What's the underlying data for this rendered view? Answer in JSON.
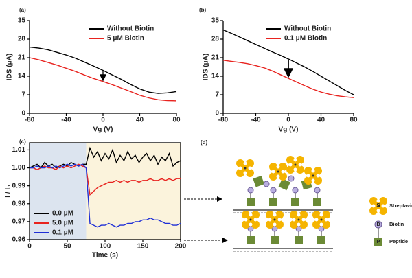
{
  "chart_data": [
    {
      "type": "line",
      "label": "(a)",
      "x_label": "Vg (V)",
      "y_label": "IDS (μA)",
      "x": [
        -80,
        -70,
        -60,
        -50,
        -40,
        -30,
        -20,
        -10,
        0,
        10,
        20,
        30,
        40,
        50,
        60,
        70,
        80
      ],
      "series": [
        {
          "name": "Without Biotin",
          "color": "#000000",
          "values": [
            25,
            24.6,
            24,
            23,
            22,
            20.8,
            19.3,
            17.8,
            16.2,
            14.5,
            12.8,
            10.9,
            9.2,
            8,
            7.5,
            7.7,
            8.2
          ]
        },
        {
          "name": "5 μM Biotin",
          "color": "#e8231f",
          "values": [
            21,
            20.2,
            19.2,
            18.2,
            17,
            15.8,
            14.4,
            13.1,
            12,
            10.8,
            9.5,
            8.2,
            6.8,
            5.8,
            5.1,
            4.8,
            4.7
          ]
        }
      ],
      "xlim": [
        -80,
        80
      ],
      "xticks": [
        -80,
        -40,
        0,
        40,
        80
      ],
      "ylim": [
        0,
        35
      ],
      "yticks": [
        0,
        7,
        14,
        21,
        28,
        35
      ],
      "legend": "upper right",
      "box": false
    },
    {
      "type": "line",
      "label": "(b)",
      "x_label": "Vg (V)",
      "y_label": "IDS (μA)",
      "x": [
        -80,
        -70,
        -60,
        -50,
        -40,
        -30,
        -20,
        -10,
        0,
        10,
        20,
        30,
        40,
        50,
        60,
        70,
        80
      ],
      "series": [
        {
          "name": "Without Biotin",
          "color": "#000000",
          "values": [
            31.5,
            30.2,
            28.8,
            27.4,
            26,
            24.6,
            23.2,
            21.9,
            20.5,
            19,
            17.5,
            15.8,
            14,
            12.2,
            10.4,
            8.6,
            7
          ]
        },
        {
          "name": "0.1 μM Biotin",
          "color": "#e8231f",
          "values": [
            20,
            19.6,
            19.2,
            18.7,
            18,
            17.2,
            16,
            14.6,
            13.2,
            11.8,
            10.4,
            9.1,
            8,
            7.2,
            6.6,
            6.2,
            5.9
          ]
        }
      ],
      "xlim": [
        -80,
        80
      ],
      "xticks": [
        -80,
        -40,
        0,
        40,
        80
      ],
      "ylim": [
        0,
        35
      ],
      "yticks": [
        0,
        7,
        14,
        21,
        28,
        35
      ],
      "legend": "upper right",
      "box": false
    },
    {
      "type": "line",
      "label": "(c)",
      "x_label": "Time (s)",
      "y_label": "I / I₀",
      "x": [
        0,
        5,
        10,
        15,
        20,
        25,
        30,
        35,
        40,
        45,
        50,
        55,
        60,
        65,
        70,
        75,
        80,
        85,
        90,
        95,
        100,
        105,
        110,
        115,
        120,
        125,
        130,
        135,
        140,
        145,
        150,
        155,
        160,
        165,
        170,
        175,
        180,
        185,
        190,
        195,
        200
      ],
      "series": [
        {
          "name": "0.0 μM",
          "color": "#000000",
          "values": [
            1.0,
            1.001,
            1.002,
            1.0,
            1.003,
            1.001,
            1.002,
            1.0,
            1.001,
            1.002,
            1.001,
            1.003,
            1.002,
            1.001,
            1.002,
            1.002,
            1.011,
            1.006,
            1.009,
            1.004,
            1.008,
            1.005,
            1.01,
            1.003,
            1.007,
            1.004,
            1.009,
            1.005,
            1.007,
            1.003,
            1.006,
            1.008,
            1.004,
            1.007,
            1.002,
            1.006,
            1.004,
            1.008,
            1.001,
            1.003,
            1.004
          ]
        },
        {
          "name": "5.0 μM",
          "color": "#e8231f",
          "values": [
            1.0,
            1.0,
            0.999,
            1.0,
            1.001,
            1.0,
            1.0,
            0.999,
            1.001,
            1.0,
            1.001,
            1.0,
            1.001,
            1.002,
            1.001,
            1.0,
            0.985,
            0.987,
            0.989,
            0.99,
            0.991,
            0.992,
            0.992,
            0.993,
            0.992,
            0.993,
            0.992,
            0.993,
            0.993,
            0.992,
            0.993,
            0.993,
            0.994,
            0.993,
            0.993,
            0.994,
            0.993,
            0.994,
            0.993,
            0.994,
            0.994
          ]
        },
        {
          "name": "0.1 μM",
          "color": "#1f2fd6",
          "values": [
            1.0,
            1.0,
            1.001,
            1.0,
            1.0,
            1.001,
            1.0,
            1.001,
            1.0,
            1.001,
            1.002,
            1.001,
            1.002,
            1.001,
            1.002,
            1.0,
            0.969,
            0.968,
            0.967,
            0.968,
            0.968,
            0.969,
            0.968,
            0.967,
            0.968,
            0.968,
            0.969,
            0.969,
            0.97,
            0.97,
            0.971,
            0.971,
            0.972,
            0.971,
            0.971,
            0.97,
            0.969,
            0.969,
            0.968,
            0.968,
            0.969
          ]
        }
      ],
      "shaded_regions": [
        {
          "x": [
            0,
            75
          ],
          "color": "#dce4ef"
        },
        {
          "x": [
            75,
            200
          ],
          "color": "#fbf3dc"
        }
      ],
      "xlim": [
        0,
        200
      ],
      "xticks": [
        0,
        50,
        100,
        150,
        200
      ],
      "ylim": [
        0.96,
        1.014
      ],
      "yticks": [
        0.96,
        0.97,
        0.98,
        0.99,
        {
          "value": 1,
          "label": "1.00"
        },
        1.01
      ],
      "legend": "lower left",
      "box": true
    }
  ],
  "diagram": {
    "label": "(d)",
    "legend": [
      {
        "symbol": "S",
        "text": "Streptavidin"
      },
      {
        "symbol": "B",
        "text": "Biotin"
      },
      {
        "symbol": "P",
        "text": "Peptide"
      }
    ]
  }
}
